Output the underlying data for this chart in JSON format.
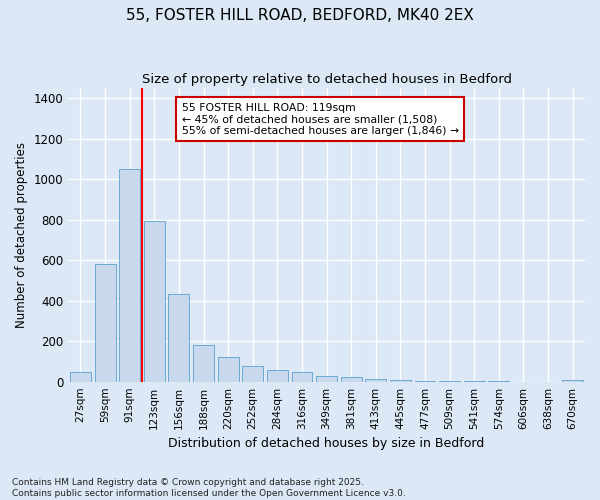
{
  "title_line1": "55, FOSTER HILL ROAD, BEDFORD, MK40 2EX",
  "title_line2": "Size of property relative to detached houses in Bedford",
  "xlabel": "Distribution of detached houses by size in Bedford",
  "ylabel": "Number of detached properties",
  "bar_color": "#c8d9ee",
  "bar_edge_color": "#6aaad4",
  "background_color": "#dce8f5",
  "fig_background_color": "#dce8f5",
  "grid_color": "#ffffff",
  "categories": [
    "27sqm",
    "59sqm",
    "91sqm",
    "123sqm",
    "156sqm",
    "188sqm",
    "220sqm",
    "252sqm",
    "284sqm",
    "316sqm",
    "349sqm",
    "381sqm",
    "413sqm",
    "445sqm",
    "477sqm",
    "509sqm",
    "541sqm",
    "574sqm",
    "606sqm",
    "638sqm",
    "670sqm"
  ],
  "values": [
    50,
    580,
    1050,
    795,
    435,
    180,
    120,
    75,
    60,
    50,
    28,
    22,
    15,
    8,
    5,
    2,
    1,
    1,
    0,
    0,
    10
  ],
  "red_line_color": "#ff0000",
  "annotation_text": "55 FOSTER HILL ROAD: 119sqm\n← 45% of detached houses are smaller (1,508)\n55% of semi-detached houses are larger (1,846) →",
  "annotation_box_facecolor": "#ffffff",
  "annotation_box_edgecolor": "#cc0000",
  "ylim": [
    0,
    1450
  ],
  "yticks": [
    0,
    200,
    400,
    600,
    800,
    1000,
    1200,
    1400
  ],
  "footnote": "Contains HM Land Registry data © Crown copyright and database right 2025.\nContains public sector information licensed under the Open Government Licence v3.0."
}
